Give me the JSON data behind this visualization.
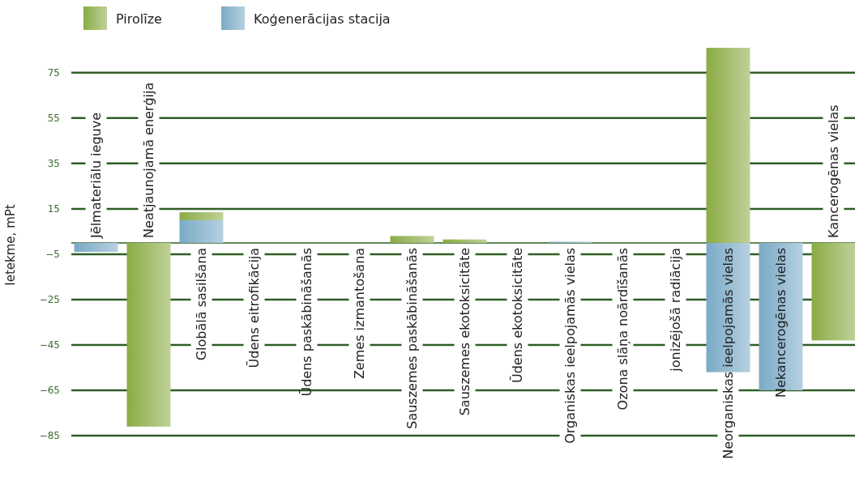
{
  "chart_data": {
    "type": "bar",
    "stacked": true,
    "ylabel": "Ietekme, mPt",
    "categories": [
      "Jēlmateriālu ieguve",
      "Neatjaunojamā enerģija",
      "Globālā sasilšana",
      "Ūdens eitrofikācija",
      "Ūdens paskābināšanās",
      "Zemes izmantošana",
      "Sauszemes paskābināšanās",
      "Sauszemes ekotoksicitāte",
      "Ūdens ekotoksicitāte",
      "Organiskas ieelpojamās vielas",
      "Ozona slāņa noārdīšanās",
      "jonizējošā radiācija",
      "Neorganiskas ieelpojamās vielas",
      "Nekancerogēnas vielas",
      "Kancerogēnas vielas"
    ],
    "series": [
      {
        "name": "Koģenerācijas stacija",
        "color": "#7aaac6",
        "values": [
          -4,
          0,
          10,
          0,
          0,
          0,
          0,
          0,
          0,
          0.5,
          0,
          0,
          -57,
          -65,
          0
        ]
      },
      {
        "name": "Pirolīze",
        "color": "#8aab45",
        "values": [
          0,
          -81,
          3.5,
          0,
          0,
          0,
          3,
          1.5,
          0,
          0,
          0,
          0,
          86,
          0,
          -43
        ]
      }
    ],
    "ylim": [
      -85,
      86
    ],
    "yticks": [
      75,
      55,
      35,
      15,
      -5,
      -25,
      -45,
      -65,
      -85
    ],
    "grid": "y",
    "legend": "top left"
  }
}
